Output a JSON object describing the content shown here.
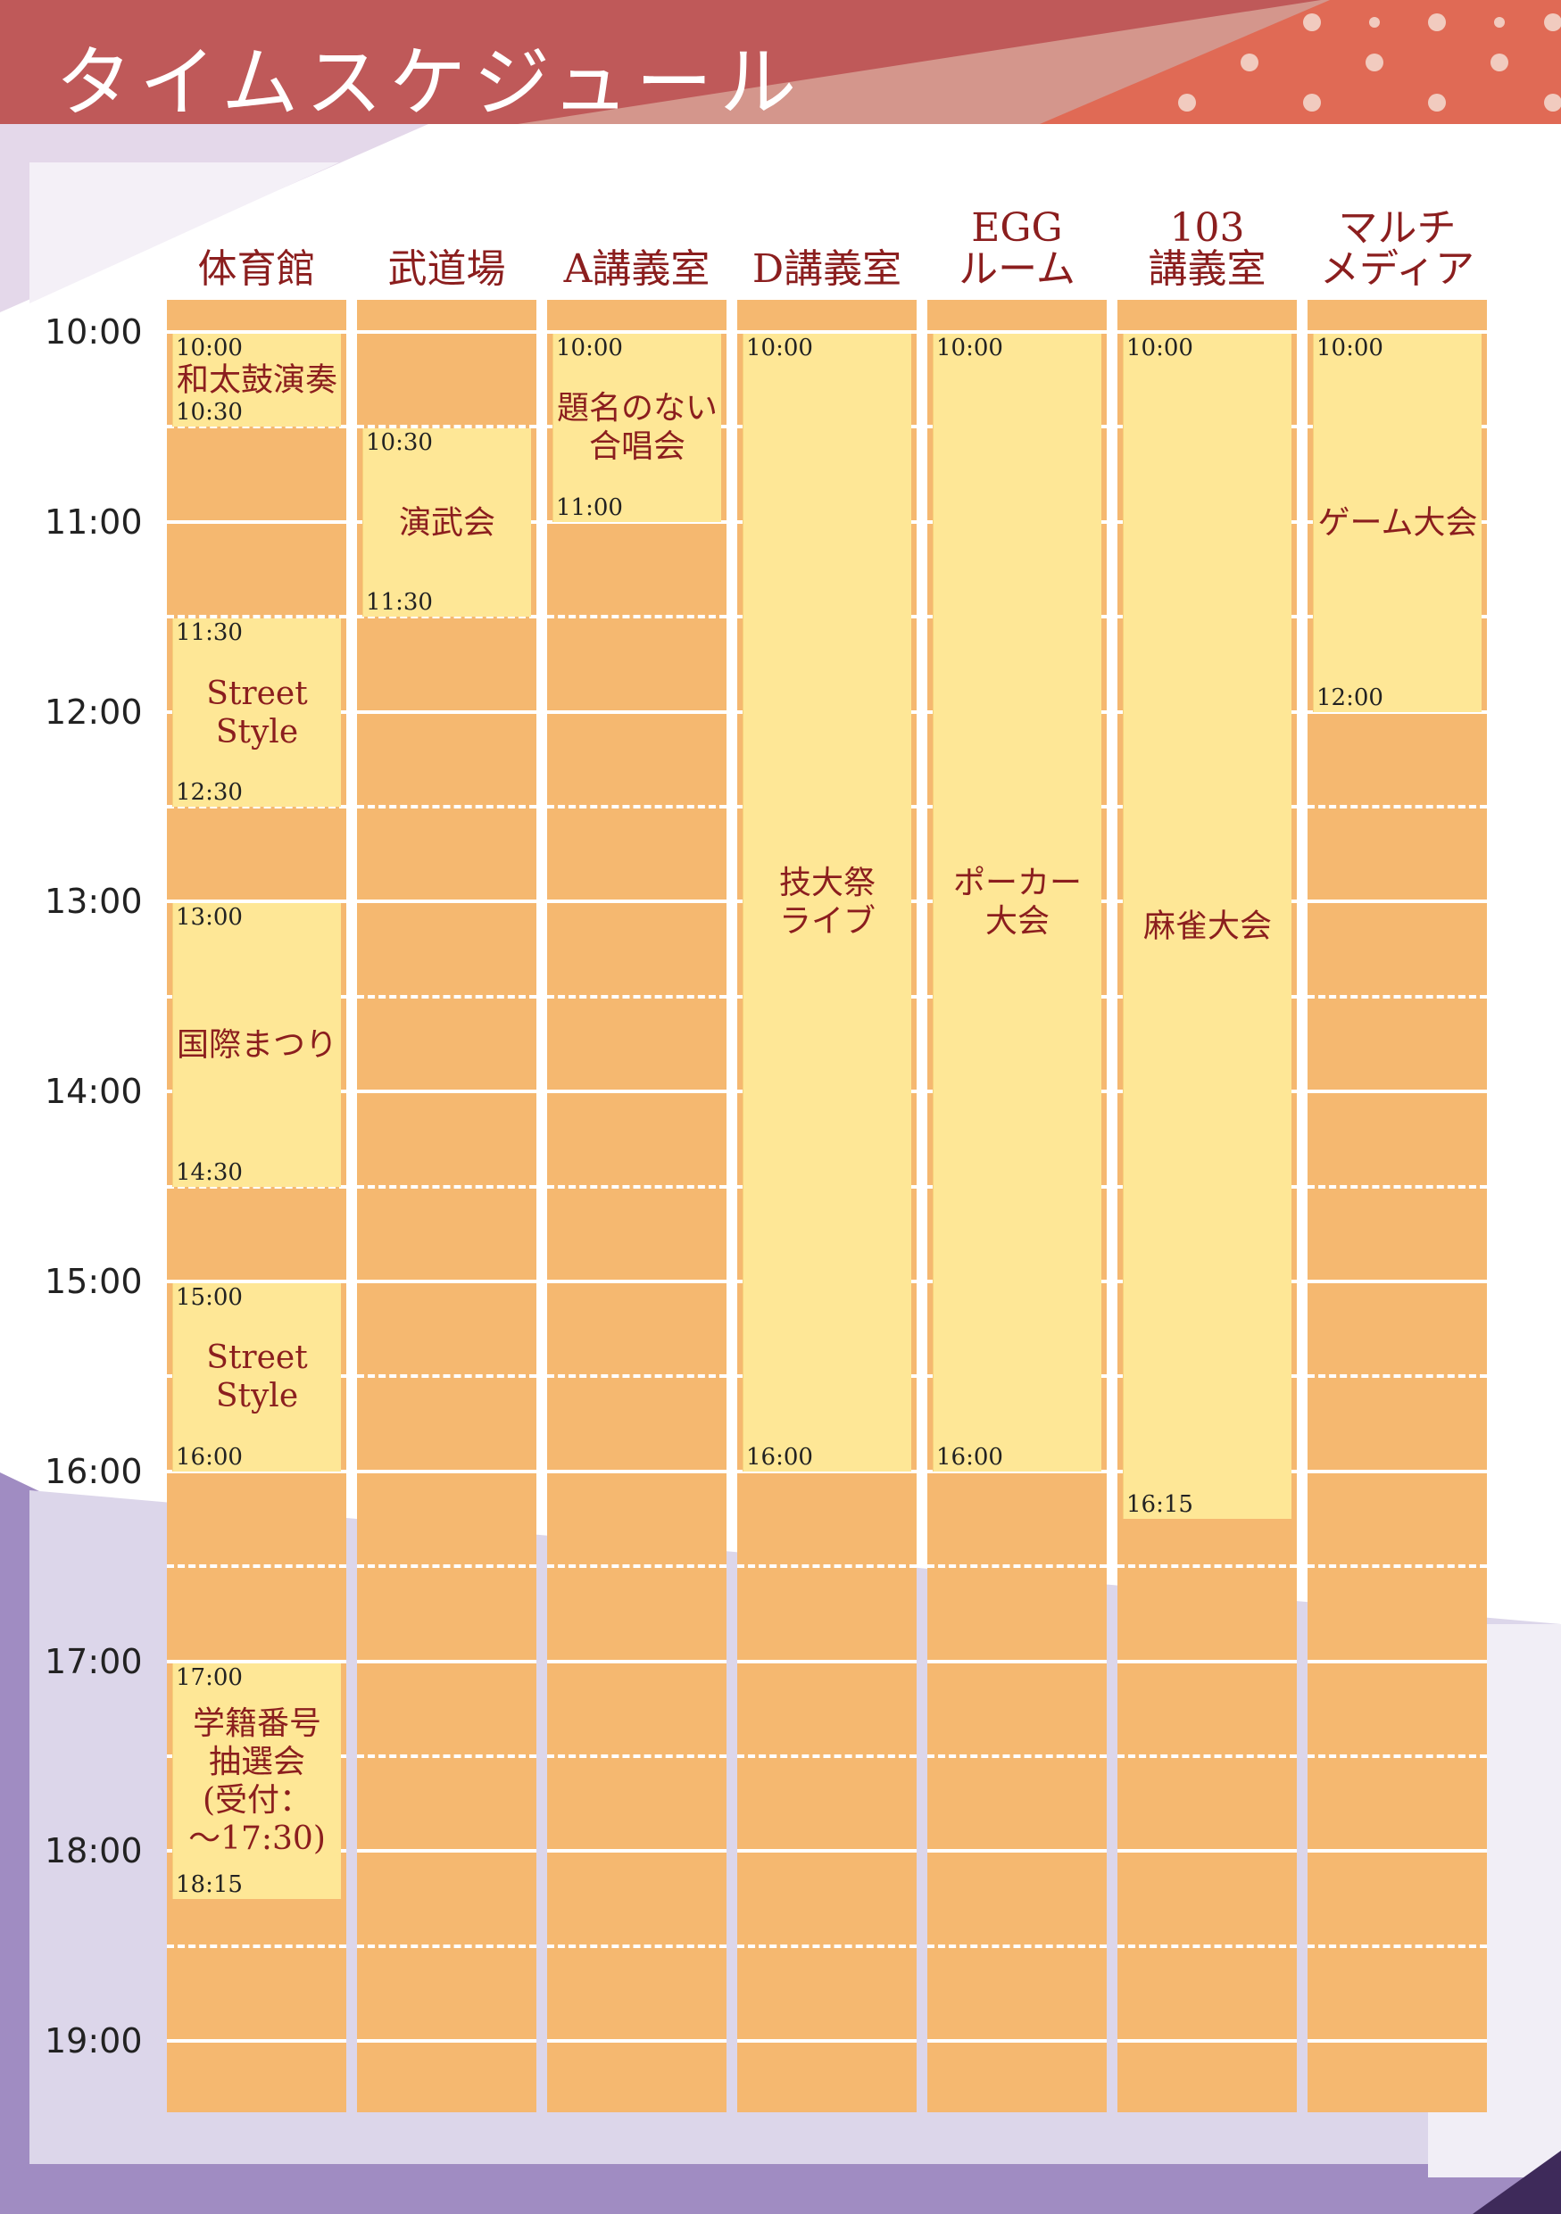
{
  "header": {
    "title": "タイムスケジュール"
  },
  "colors": {
    "banner": "#bf5959",
    "banner_light": "#d4968c",
    "pattern": "#e06a55",
    "cell": "#f5b870",
    "event": "#fee796",
    "text": "#8b1e1e",
    "purple": "#a08cc2",
    "purple_light": "#dcd6ea"
  },
  "time_labels": [
    "10:00",
    "11:00",
    "12:00",
    "13:00",
    "14:00",
    "15:00",
    "16:00",
    "17:00",
    "18:00",
    "19:00"
  ],
  "venues": [
    {
      "name": "体育館",
      "events": [
        {
          "start": "10:00",
          "end": "10:30",
          "title": "和太鼓演奏"
        },
        {
          "start": "11:30",
          "end": "12:30",
          "title": "Street\nStyle"
        },
        {
          "start": "13:00",
          "end": "14:30",
          "title": "国際まつり"
        },
        {
          "start": "15:00",
          "end": "16:00",
          "title": "Street\nStyle"
        },
        {
          "start": "17:00",
          "end": "18:15",
          "title": "学籍番号\n抽選会\n(受付：\n～17:30)"
        }
      ]
    },
    {
      "name": "武道場",
      "events": [
        {
          "start": "10:30",
          "end": "11:30",
          "title": "演武会"
        }
      ]
    },
    {
      "name": "A講義室",
      "events": [
        {
          "start": "10:00",
          "end": "11:00",
          "title": "題名のない\n合唱会"
        }
      ]
    },
    {
      "name": "D講義室",
      "events": [
        {
          "start": "10:00",
          "end": "16:00",
          "title": "技大祭\nライブ"
        }
      ]
    },
    {
      "name": "EGG\nルーム",
      "events": [
        {
          "start": "10:00",
          "end": "16:00",
          "title": "ポーカー\n大会"
        }
      ]
    },
    {
      "name": "103\n講義室",
      "events": [
        {
          "start": "10:00",
          "end": "16:15",
          "title": "麻雀大会"
        }
      ]
    },
    {
      "name": "マルチ\nメディア",
      "events": [
        {
          "start": "10:00",
          "end": "12:00",
          "title": "ゲーム大会"
        }
      ]
    }
  ]
}
